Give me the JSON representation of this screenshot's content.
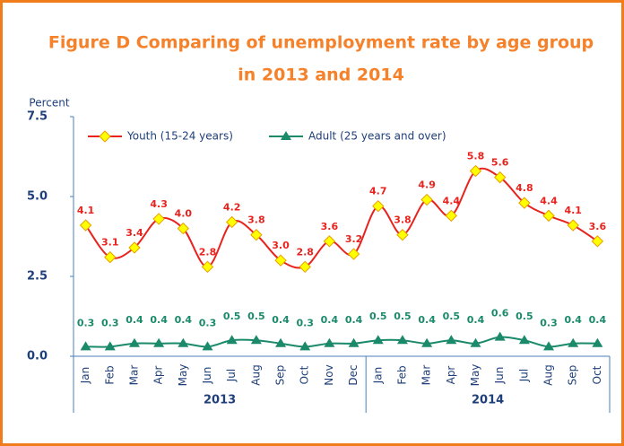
{
  "chart_data": {
    "type": "line",
    "title": [
      "Figure D Comparing of unemployment rate by age group",
      "in 2013 and 2014"
    ],
    "y_label": "Percent",
    "groups": [
      {
        "name": "2013",
        "categories": [
          "Jan",
          "Feb",
          "Mar",
          "Apr",
          "May",
          "Jun",
          "Jul",
          "Aug",
          "Sep",
          "Oct",
          "Nov",
          "Dec"
        ]
      },
      {
        "name": "2014",
        "categories": [
          "Jan",
          "Feb",
          "Mar",
          "Apr",
          "May",
          "Jun",
          "Jul",
          "Aug",
          "Sep",
          "Oct"
        ]
      }
    ],
    "series": [
      {
        "name": "Youth (15-24 years)",
        "color": "#e8231e",
        "marker": "diamond",
        "marker_color": "#ffff00",
        "values": [
          4.1,
          3.1,
          3.4,
          4.3,
          4.0,
          2.8,
          4.2,
          3.8,
          3.0,
          2.8,
          3.6,
          3.2,
          4.7,
          3.8,
          4.9,
          4.4,
          5.8,
          5.6,
          4.8,
          4.4,
          4.1,
          3.6
        ],
        "value_labels": [
          "4.1",
          "3.1",
          "3.4",
          "4.3",
          "4.0",
          "2.8",
          "4.2",
          "3.8",
          "3.0",
          "2.8",
          "3.6",
          "3.2",
          "4.7",
          "3.8",
          "4.9",
          "4.4",
          "5.8",
          "5.6",
          "4.8",
          "4.4",
          "4.1",
          "3.6"
        ]
      },
      {
        "name": "Adult (25 years and over)",
        "color": "#1a8a6a",
        "marker": "triangle",
        "marker_color": "#1a8a6a",
        "values": [
          0.3,
          0.3,
          0.4,
          0.4,
          0.4,
          0.3,
          0.5,
          0.5,
          0.4,
          0.3,
          0.4,
          0.4,
          0.5,
          0.5,
          0.4,
          0.5,
          0.4,
          0.6,
          0.5,
          0.3,
          0.4,
          0.4
        ],
        "value_labels": [
          "0.3",
          "0.3",
          "0.4",
          "0.4",
          "0.4",
          "0.3",
          "0.5",
          "0.5",
          "0.4",
          "0.3",
          "0.4",
          "0.4",
          "0.5",
          "0.5",
          "0.4",
          "0.5",
          "0.4",
          "0.6",
          "0.5",
          "0.3",
          "0.4",
          "0.4"
        ]
      }
    ],
    "ylim": [
      0,
      7.5
    ],
    "yticks": [
      {
        "value": 0,
        "label": "0.0"
      },
      2.5,
      {
        "value": 5,
        "label": "5.0"
      },
      7.5
    ]
  }
}
